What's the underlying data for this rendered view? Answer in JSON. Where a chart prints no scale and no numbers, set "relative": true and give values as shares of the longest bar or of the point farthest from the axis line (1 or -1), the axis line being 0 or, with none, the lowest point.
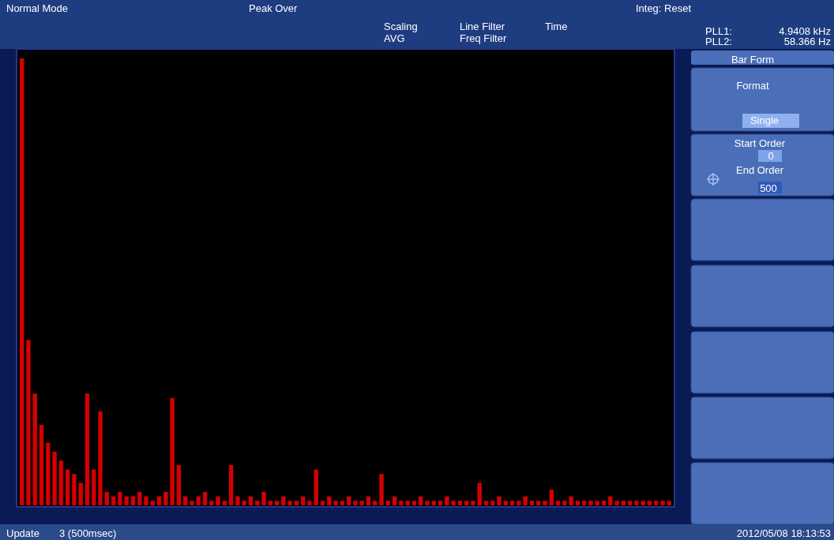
{
  "chart_data": {
    "type": "bar",
    "relative": true,
    "color": "#d40000",
    "categories": [
      null,
      null,
      null,
      null,
      null,
      null,
      null,
      null,
      null,
      null,
      null,
      null,
      null,
      null,
      null,
      null,
      null,
      null,
      null,
      null,
      null,
      null,
      null,
      null,
      null,
      null,
      null,
      null,
      null,
      null,
      null,
      null,
      null,
      null,
      null,
      null,
      null,
      null,
      null,
      null,
      null,
      null,
      null,
      null,
      null,
      null,
      null,
      null,
      null,
      null,
      null,
      null,
      null,
      null,
      null,
      null,
      null,
      null,
      null,
      null,
      null,
      null,
      null,
      null,
      null,
      null,
      null,
      null,
      null,
      null,
      null,
      null,
      null,
      null,
      null,
      null,
      null,
      null,
      null,
      null,
      null,
      null,
      null,
      null,
      null,
      null,
      null,
      null,
      null,
      null,
      null,
      null,
      null,
      null,
      null,
      null,
      null,
      null,
      null,
      null
    ],
    "values": [
      1.0,
      0.37,
      0.25,
      0.18,
      0.14,
      0.12,
      0.1,
      0.08,
      0.07,
      0.05,
      0.25,
      0.08,
      0.21,
      0.03,
      0.02,
      0.03,
      0.02,
      0.02,
      0.03,
      0.02,
      0.01,
      0.02,
      0.03,
      0.24,
      0.09,
      0.02,
      0.01,
      0.02,
      0.03,
      0.01,
      0.02,
      0.01,
      0.09,
      0.02,
      0.01,
      0.02,
      0.01,
      0.03,
      0.01,
      0.01,
      0.02,
      0.01,
      0.01,
      0.02,
      0.01,
      0.08,
      0.01,
      0.02,
      0.01,
      0.01,
      0.02,
      0.01,
      0.01,
      0.02,
      0.01,
      0.07,
      0.01,
      0.02,
      0.01,
      0.01,
      0.01,
      0.02,
      0.01,
      0.01,
      0.01,
      0.02,
      0.01,
      0.01,
      0.01,
      0.01,
      0.05,
      0.01,
      0.01,
      0.02,
      0.01,
      0.01,
      0.01,
      0.02,
      0.01,
      0.01,
      0.01,
      0.035,
      0.01,
      0.01,
      0.02,
      0.01,
      0.01,
      0.01,
      0.01,
      0.01,
      0.02,
      0.01,
      0.01,
      0.01,
      0.01,
      0.01,
      0.01,
      0.01,
      0.01,
      0.01
    ],
    "annotations": [
      "Normal Mode",
      "Peak Over",
      "Scaling",
      "AVG",
      "Line Filter",
      "Freq Filter",
      "Integ: Reset",
      "Time",
      "PLL1:",
      "4.9408 kHz",
      "PLL2:",
      "58.366 Hz",
      "Bar Form",
      "Format",
      "Single",
      "Start Order",
      "0",
      "End Order",
      "500",
      "Update",
      "3 (500msec)",
      "2012/05/08 18:13:53"
    ]
  }
}
